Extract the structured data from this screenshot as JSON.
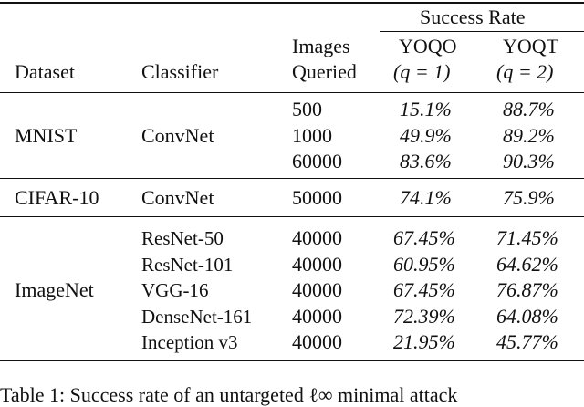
{
  "header": {
    "success_rate": "Success Rate",
    "dataset": "Dataset",
    "classifier": "Classifier",
    "images_queried_1": "Images",
    "images_queried_2": "Queried",
    "yoqo": "YOQO",
    "yoqo_q": "(q = 1)",
    "yoqt": "YOQT",
    "yoqt_q": "(q = 2)"
  },
  "rows": {
    "mnist": {
      "dataset": "MNIST",
      "classifier": "ConvNet",
      "images": [
        "500",
        "1000",
        "60000"
      ],
      "yoqo": [
        "15.1%",
        "49.9%",
        "83.6%"
      ],
      "yoqt": [
        "88.7%",
        "89.2%",
        "90.3%"
      ]
    },
    "cifar": {
      "dataset": "CIFAR-10",
      "classifier": "ConvNet",
      "images": "50000",
      "yoqo": "74.1%",
      "yoqt": "75.9%"
    },
    "imagenet": {
      "dataset": "ImageNet",
      "classifiers": [
        "ResNet-50",
        "ResNet-101",
        "VGG-16",
        "DenseNet-161",
        "Inception v3"
      ],
      "images": [
        "40000",
        "40000",
        "40000",
        "40000",
        "40000"
      ],
      "yoqo": [
        "67.45%",
        "60.95%",
        "67.45%",
        "72.39%",
        "21.95%"
      ],
      "yoqt": [
        "71.45%",
        "64.62%",
        "76.87%",
        "64.08%",
        "45.77%"
      ]
    }
  },
  "caption": "Table 1: Success rate of an untargeted ℓ∞ minimal attack"
}
